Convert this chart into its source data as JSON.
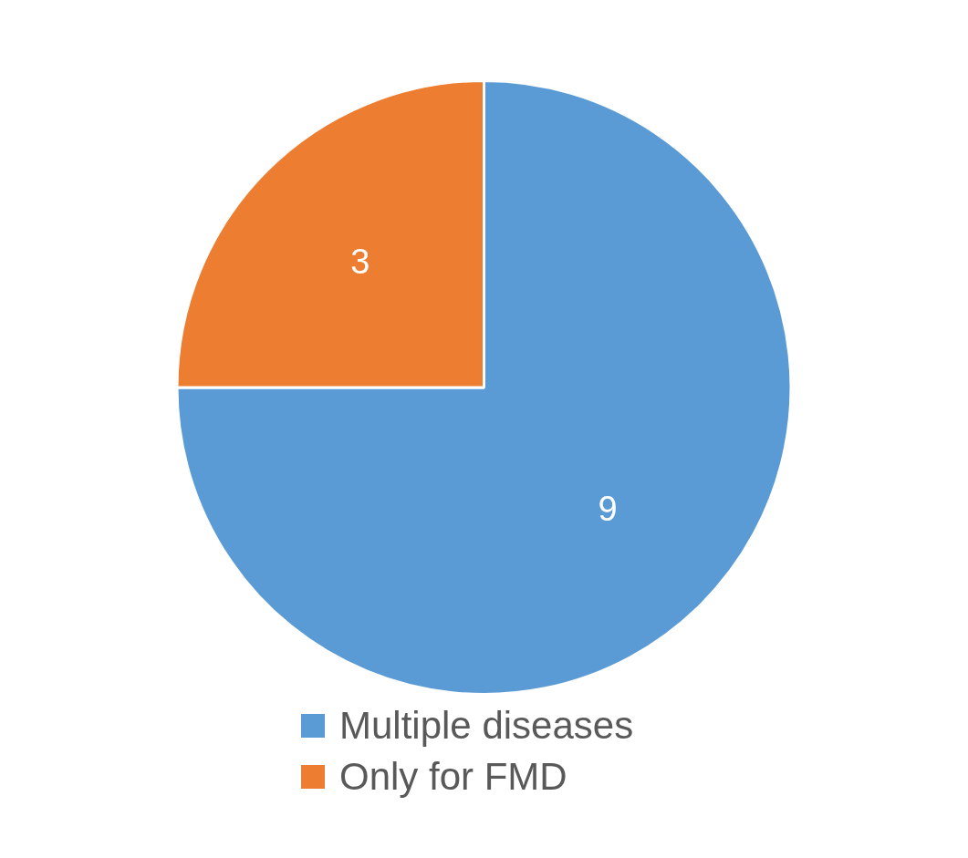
{
  "chart_data": {
    "type": "pie",
    "categories": [
      "Multiple diseases",
      "Only for FMD"
    ],
    "values": [
      9,
      3
    ],
    "colors": [
      "#5b9bd5",
      "#ed7d31"
    ],
    "data_labels": true,
    "legend": "bottom"
  }
}
